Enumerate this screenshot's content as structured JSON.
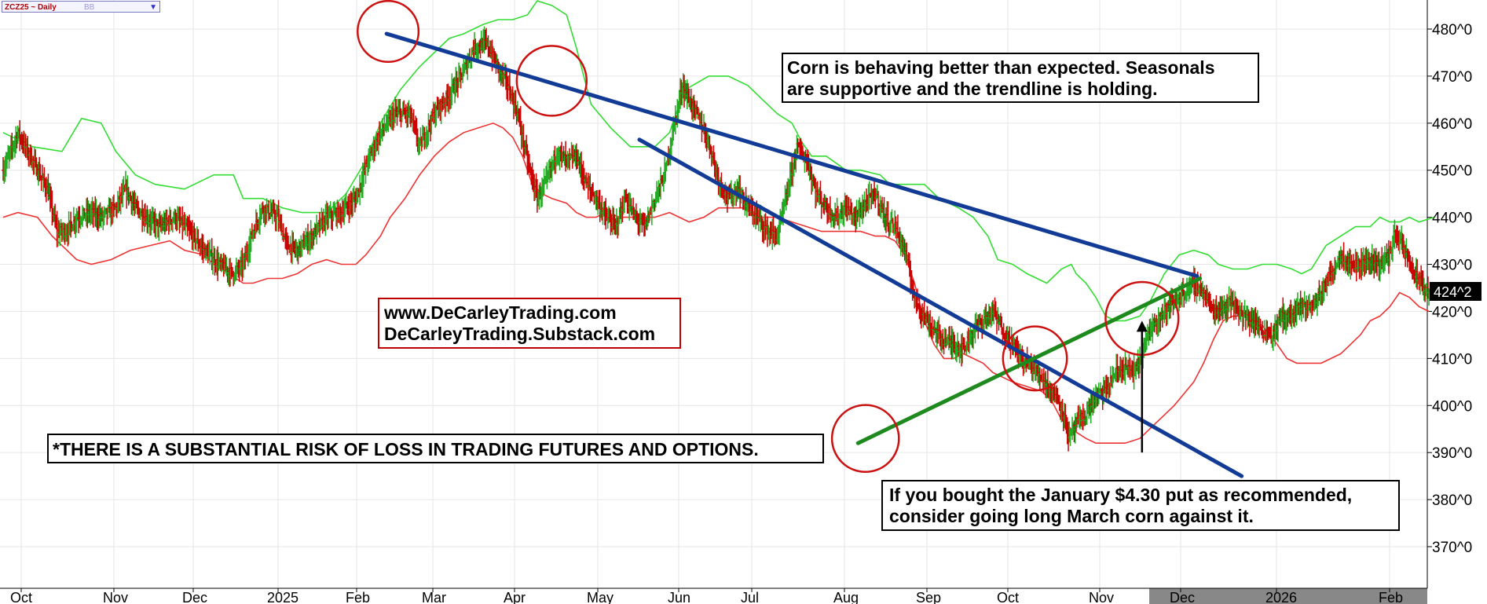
{
  "header": {
    "symbol": "ZCZ25 ~ Daily",
    "selector": "BB"
  },
  "chart_data": {
    "type": "bar",
    "title": "ZCZ25 ~ Daily",
    "x_labels": [
      "Oct",
      "Nov",
      "Dec",
      "2025",
      "Feb",
      "Mar",
      "Apr",
      "May",
      "Jun",
      "Jul",
      "Aug",
      "Sep",
      "Oct",
      "Nov",
      "Dec",
      "2026",
      "Feb"
    ],
    "y_ticks": [
      "480^0",
      "470^0",
      "460^0",
      "450^0",
      "440^0",
      "430^0",
      "420^0",
      "410^0",
      "400^0",
      "390^0",
      "380^0",
      "370^0"
    ],
    "ylim": [
      366,
      486
    ],
    "last_price_label": "424^2",
    "last_price": 424.25,
    "grid": true,
    "series": [
      {
        "name": "Price (daily OHLC)",
        "color": "#22aa22",
        "down_color": "#cc0000"
      },
      {
        "name": "Upper band",
        "color": "#33dd33"
      },
      {
        "name": "Lower band",
        "color": "#ee3333"
      }
    ],
    "price_path": [
      [
        0,
        450
      ],
      [
        15,
        458
      ],
      [
        30,
        452
      ],
      [
        45,
        446
      ],
      [
        55,
        437
      ],
      [
        65,
        437
      ],
      [
        75,
        440
      ],
      [
        90,
        441
      ],
      [
        100,
        440
      ],
      [
        115,
        442
      ],
      [
        125,
        446
      ],
      [
        135,
        442
      ],
      [
        145,
        440
      ],
      [
        160,
        438
      ],
      [
        175,
        440
      ],
      [
        190,
        437
      ],
      [
        205,
        433
      ],
      [
        220,
        430
      ],
      [
        235,
        428
      ],
      [
        245,
        430
      ],
      [
        255,
        437
      ],
      [
        265,
        442
      ],
      [
        280,
        440
      ],
      [
        290,
        434
      ],
      [
        300,
        433
      ],
      [
        315,
        436
      ],
      [
        330,
        440
      ],
      [
        345,
        441
      ],
      [
        360,
        444
      ],
      [
        372,
        452
      ],
      [
        385,
        458
      ],
      [
        400,
        462
      ],
      [
        415,
        462
      ],
      [
        425,
        455
      ],
      [
        440,
        462
      ],
      [
        455,
        466
      ],
      [
        470,
        471
      ],
      [
        480,
        476
      ],
      [
        493,
        477
      ],
      [
        505,
        472
      ],
      [
        515,
        468
      ],
      [
        525,
        462
      ],
      [
        535,
        452
      ],
      [
        545,
        444
      ],
      [
        555,
        448
      ],
      [
        565,
        454
      ],
      [
        575,
        452
      ],
      [
        585,
        453
      ],
      [
        595,
        447
      ],
      [
        605,
        444
      ],
      [
        615,
        440
      ],
      [
        625,
        438
      ],
      [
        635,
        444
      ],
      [
        645,
        440
      ],
      [
        655,
        438
      ],
      [
        665,
        444
      ],
      [
        675,
        449
      ],
      [
        685,
        460
      ],
      [
        693,
        468
      ],
      [
        700,
        465
      ],
      [
        710,
        461
      ],
      [
        720,
        456
      ],
      [
        730,
        448
      ],
      [
        740,
        444
      ],
      [
        750,
        446
      ],
      [
        760,
        442
      ],
      [
        770,
        440
      ],
      [
        780,
        437
      ],
      [
        790,
        436
      ],
      [
        800,
        445
      ],
      [
        810,
        455
      ],
      [
        820,
        452
      ],
      [
        830,
        445
      ],
      [
        840,
        442
      ],
      [
        850,
        440
      ],
      [
        860,
        442
      ],
      [
        870,
        440
      ],
      [
        880,
        443
      ],
      [
        890,
        445
      ],
      [
        900,
        440
      ],
      [
        910,
        438
      ],
      [
        920,
        433
      ],
      [
        930,
        423
      ],
      [
        940,
        419
      ],
      [
        950,
        416
      ],
      [
        960,
        414
      ],
      [
        970,
        413
      ],
      [
        980,
        412
      ],
      [
        990,
        416
      ],
      [
        1000,
        418
      ],
      [
        1010,
        420
      ],
      [
        1020,
        416
      ],
      [
        1030,
        413
      ],
      [
        1040,
        410
      ],
      [
        1050,
        408
      ],
      [
        1060,
        406
      ],
      [
        1070,
        403
      ],
      [
        1080,
        400
      ],
      [
        1088,
        393
      ],
      [
        1095,
        396
      ],
      [
        1105,
        398
      ],
      [
        1115,
        402
      ],
      [
        1125,
        403
      ],
      [
        1135,
        407
      ],
      [
        1145,
        408
      ],
      [
        1155,
        407
      ],
      [
        1165,
        413
      ],
      [
        1175,
        418
      ],
      [
        1185,
        420
      ],
      [
        1195,
        422
      ],
      [
        1205,
        424
      ],
      [
        1215,
        426
      ],
      [
        1225,
        424
      ],
      [
        1235,
        420
      ],
      [
        1245,
        421
      ],
      [
        1255,
        422
      ],
      [
        1265,
        419
      ],
      [
        1275,
        418
      ],
      [
        1285,
        416
      ],
      [
        1295,
        415
      ],
      [
        1305,
        419
      ],
      [
        1315,
        419
      ],
      [
        1325,
        421
      ],
      [
        1335,
        421
      ],
      [
        1345,
        424
      ],
      [
        1355,
        428
      ],
      [
        1365,
        432
      ],
      [
        1375,
        430
      ],
      [
        1385,
        430
      ],
      [
        1395,
        431
      ],
      [
        1405,
        430
      ],
      [
        1415,
        432
      ],
      [
        1420,
        437
      ],
      [
        1430,
        433
      ],
      [
        1440,
        428
      ],
      [
        1450,
        425
      ],
      [
        1457,
        424
      ]
    ],
    "upper_band": [
      [
        0,
        458
      ],
      [
        30,
        455
      ],
      [
        60,
        454
      ],
      [
        80,
        461
      ],
      [
        100,
        460
      ],
      [
        115,
        454
      ],
      [
        135,
        449
      ],
      [
        155,
        447
      ],
      [
        185,
        446
      ],
      [
        205,
        448
      ],
      [
        215,
        449
      ],
      [
        235,
        449
      ],
      [
        245,
        444
      ],
      [
        265,
        444
      ],
      [
        285,
        442
      ],
      [
        305,
        441
      ],
      [
        330,
        441
      ],
      [
        350,
        445
      ],
      [
        370,
        452
      ],
      [
        385,
        460
      ],
      [
        405,
        467
      ],
      [
        425,
        472
      ],
      [
        440,
        475
      ],
      [
        455,
        478
      ],
      [
        470,
        479
      ],
      [
        490,
        481
      ],
      [
        505,
        482
      ],
      [
        520,
        482
      ],
      [
        535,
        483
      ],
      [
        545,
        486
      ],
      [
        560,
        485
      ],
      [
        575,
        483
      ],
      [
        585,
        476
      ],
      [
        600,
        464
      ],
      [
        620,
        459
      ],
      [
        640,
        455
      ],
      [
        655,
        455
      ],
      [
        665,
        455
      ],
      [
        680,
        458
      ],
      [
        695,
        467
      ],
      [
        720,
        470
      ],
      [
        740,
        470
      ],
      [
        760,
        468
      ],
      [
        775,
        465
      ],
      [
        790,
        462
      ],
      [
        805,
        460
      ],
      [
        815,
        456
      ],
      [
        825,
        453
      ],
      [
        840,
        453
      ],
      [
        860,
        450
      ],
      [
        875,
        450
      ],
      [
        895,
        449
      ],
      [
        905,
        447
      ],
      [
        920,
        447
      ],
      [
        940,
        447
      ],
      [
        955,
        444
      ],
      [
        965,
        443
      ],
      [
        975,
        442
      ],
      [
        990,
        440
      ],
      [
        1005,
        436
      ],
      [
        1015,
        431
      ],
      [
        1030,
        430
      ],
      [
        1045,
        428
      ],
      [
        1065,
        426
      ],
      [
        1080,
        429
      ],
      [
        1090,
        430
      ],
      [
        1095,
        428
      ],
      [
        1105,
        426
      ],
      [
        1115,
        423
      ],
      [
        1125,
        419
      ],
      [
        1135,
        418
      ],
      [
        1145,
        418
      ],
      [
        1160,
        419
      ],
      [
        1170,
        422
      ],
      [
        1185,
        428
      ],
      [
        1200,
        432
      ],
      [
        1215,
        433
      ],
      [
        1230,
        432
      ],
      [
        1240,
        430
      ],
      [
        1255,
        429
      ],
      [
        1270,
        429
      ],
      [
        1285,
        430
      ],
      [
        1300,
        430
      ],
      [
        1315,
        429
      ],
      [
        1325,
        428
      ],
      [
        1335,
        429
      ],
      [
        1350,
        434
      ],
      [
        1365,
        436
      ],
      [
        1380,
        438
      ],
      [
        1395,
        438
      ],
      [
        1405,
        440
      ],
      [
        1415,
        439
      ],
      [
        1425,
        439
      ],
      [
        1435,
        440
      ],
      [
        1445,
        439
      ],
      [
        1460,
        440
      ]
    ],
    "lower_band": [
      [
        0,
        440
      ],
      [
        15,
        441
      ],
      [
        35,
        440
      ],
      [
        50,
        436
      ],
      [
        60,
        434
      ],
      [
        75,
        431
      ],
      [
        90,
        430
      ],
      [
        110,
        431
      ],
      [
        130,
        433
      ],
      [
        150,
        434
      ],
      [
        170,
        435
      ],
      [
        185,
        433
      ],
      [
        205,
        432
      ],
      [
        215,
        430
      ],
      [
        230,
        428
      ],
      [
        245,
        426
      ],
      [
        255,
        426
      ],
      [
        270,
        427
      ],
      [
        285,
        427
      ],
      [
        300,
        428
      ],
      [
        315,
        430
      ],
      [
        330,
        431
      ],
      [
        345,
        430
      ],
      [
        360,
        430
      ],
      [
        370,
        432
      ],
      [
        385,
        436
      ],
      [
        395,
        440
      ],
      [
        410,
        444
      ],
      [
        425,
        449
      ],
      [
        440,
        453
      ],
      [
        455,
        456
      ],
      [
        470,
        458
      ],
      [
        485,
        459
      ],
      [
        500,
        460
      ],
      [
        510,
        459
      ],
      [
        520,
        457
      ],
      [
        530,
        453
      ],
      [
        540,
        447
      ],
      [
        550,
        445
      ],
      [
        560,
        444
      ],
      [
        575,
        443
      ],
      [
        585,
        441
      ],
      [
        595,
        440
      ],
      [
        605,
        440
      ],
      [
        615,
        441
      ],
      [
        630,
        440
      ],
      [
        650,
        440
      ],
      [
        665,
        440
      ],
      [
        680,
        441
      ],
      [
        700,
        439
      ],
      [
        715,
        440
      ],
      [
        730,
        442
      ],
      [
        745,
        442
      ],
      [
        755,
        442
      ],
      [
        770,
        440
      ],
      [
        790,
        440
      ],
      [
        805,
        439
      ],
      [
        820,
        438
      ],
      [
        835,
        437
      ],
      [
        845,
        437
      ],
      [
        860,
        437
      ],
      [
        875,
        437
      ],
      [
        890,
        436
      ],
      [
        900,
        436
      ],
      [
        910,
        435
      ],
      [
        920,
        432
      ],
      [
        930,
        426
      ],
      [
        940,
        418
      ],
      [
        950,
        413
      ],
      [
        960,
        410
      ],
      [
        970,
        410
      ],
      [
        980,
        411
      ],
      [
        990,
        410
      ],
      [
        1000,
        409
      ],
      [
        1010,
        407
      ],
      [
        1020,
        406
      ],
      [
        1030,
        405
      ],
      [
        1045,
        404
      ],
      [
        1060,
        403
      ],
      [
        1070,
        401
      ],
      [
        1080,
        397
      ],
      [
        1090,
        395
      ],
      [
        1105,
        393
      ],
      [
        1115,
        392
      ],
      [
        1125,
        392
      ],
      [
        1145,
        392
      ],
      [
        1160,
        393
      ],
      [
        1175,
        396
      ],
      [
        1185,
        398
      ],
      [
        1195,
        400
      ],
      [
        1215,
        405
      ],
      [
        1225,
        409
      ],
      [
        1235,
        414
      ],
      [
        1245,
        418
      ],
      [
        1255,
        419
      ],
      [
        1265,
        419
      ],
      [
        1275,
        418
      ],
      [
        1285,
        417
      ],
      [
        1300,
        413
      ],
      [
        1310,
        410
      ],
      [
        1320,
        409
      ],
      [
        1335,
        409
      ],
      [
        1345,
        409
      ],
      [
        1355,
        410
      ],
      [
        1365,
        411
      ],
      [
        1375,
        413
      ],
      [
        1385,
        415
      ],
      [
        1395,
        418
      ],
      [
        1405,
        419
      ],
      [
        1415,
        421
      ],
      [
        1425,
        424
      ],
      [
        1435,
        423
      ],
      [
        1445,
        421
      ],
      [
        1455,
        420
      ]
    ],
    "trendlines": [
      {
        "name": "Descending resistance from Feb high",
        "color": "#123b96",
        "from": [
          0.26,
          479.0
        ],
        "to": [
          0.805,
          427.5
        ]
      },
      {
        "name": "Descending line from May",
        "color": "#123b96",
        "from": [
          0.43,
          456.5
        ],
        "to": [
          0.835,
          385.0
        ]
      },
      {
        "name": "Ascending support from Aug low",
        "color": "#1e8a1e",
        "from": [
          0.577,
          392.0
        ],
        "to": [
          0.807,
          427.0
        ]
      }
    ],
    "circles": [
      {
        "cx": 0.261,
        "cy": 479.5,
        "r": 0.0205
      },
      {
        "cx": 0.371,
        "cy": 469.0,
        "r": 0.0235
      },
      {
        "cx": 0.582,
        "cy": 393.0,
        "r": 0.0225
      },
      {
        "cx": 0.696,
        "cy": 410.0,
        "r": 0.0215
      },
      {
        "cx": 0.768,
        "cy": 418.5,
        "r": 0.0245
      }
    ],
    "arrow": {
      "from": [
        0.768,
        390.0
      ],
      "to": [
        0.768,
        418.0
      ]
    }
  },
  "annotations": {
    "top_note": [
      "Corn is behaving better than expected. Seasonals",
      "are supportive and the trendline is holding."
    ],
    "website": [
      "www.DeCarleyTrading.com",
      "DeCarleyTrading.Substack.com"
    ],
    "risk": "*THERE IS A SUBSTANTIAL RISK OF LOSS IN TRADING FUTURES AND OPTIONS.",
    "put_note": [
      "If you bought the January $4.30 put as recommended,",
      "consider going long March corn against it."
    ]
  },
  "colors": {
    "up": "#22aa22",
    "down": "#cc0000",
    "upper_band": "#33dd33",
    "lower_band": "#ee3333",
    "trend_blue": "#123b96",
    "trend_green": "#1e8a1e",
    "circle": "#cc1111",
    "grid": "#e6e6e6",
    "axis_text": "#000000"
  }
}
